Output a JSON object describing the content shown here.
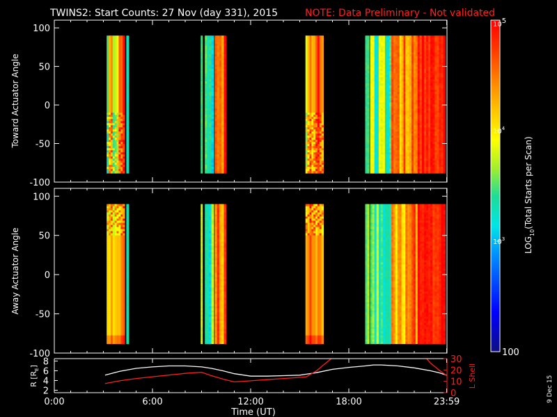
{
  "header": {
    "title": "TWINS2: Start Counts: 27 Nov (day 331), 2015",
    "note": "NOTE: Data Preliminary - Not validated"
  },
  "datestamp": "9 Dec 15",
  "colors": {
    "background": "#000000",
    "axes": "#ffffff",
    "note": "#ff2020",
    "lshell": "#ff2020",
    "radius": "#ffffff"
  },
  "colorbar": {
    "label": "LOG10(Total Starts per Scan)",
    "label_main": "LOG",
    "label_sub": "10",
    "label_rest": "(Total Starts per Scan)",
    "ticks": [
      {
        "value": 100,
        "label": "100",
        "kind": "plain"
      },
      {
        "value": 1000,
        "label_base": "10",
        "label_exp": "3",
        "kind": "power"
      },
      {
        "value": 10000,
        "label_base": "10",
        "label_exp": "4",
        "kind": "power"
      },
      {
        "value": 100000,
        "label_base": "10",
        "label_exp": "5",
        "kind": "power"
      }
    ],
    "range_log10": [
      2,
      5
    ]
  },
  "chart_data": [
    {
      "type": "heatmap",
      "ylabel": "Toward Actuator Angle",
      "ylim": [
        -100,
        110
      ],
      "yticks": [
        {
          "value": 100,
          "label": "100"
        },
        {
          "value": 50,
          "label": "50"
        },
        {
          "value": 0,
          "label": "0"
        },
        {
          "value": -50,
          "label": "-50"
        },
        {
          "value": -100,
          "label": "-100"
        }
      ],
      "xlim_hours": [
        0,
        24
      ],
      "angle_range": [
        -88,
        90
      ],
      "value_scale": "log10 counts",
      "intervals": [
        {
          "start": 3.2,
          "end": 4.3,
          "level": 4.3,
          "variation": 0.45,
          "texture": "striped"
        },
        {
          "start": 4.4,
          "end": 4.55,
          "level": 3.3,
          "variation": 0.15,
          "texture": "smooth"
        },
        {
          "start": 8.95,
          "end": 9.05,
          "level": 3.6,
          "variation": 0.2,
          "texture": "smooth"
        },
        {
          "start": 9.2,
          "end": 9.45,
          "level": 3.4,
          "variation": 0.2,
          "texture": "columns"
        },
        {
          "start": 9.45,
          "end": 9.75,
          "level": 3.3,
          "variation": 0.4,
          "texture": "columns"
        },
        {
          "start": 9.8,
          "end": 10.5,
          "level": 4.6,
          "variation": 0.45,
          "texture": "columns"
        },
        {
          "start": 15.35,
          "end": 16.45,
          "level": 4.4,
          "variation": 0.45,
          "texture": "striped"
        },
        {
          "start": 19.0,
          "end": 19.25,
          "level": 3.5,
          "variation": 0.2,
          "texture": "smooth"
        },
        {
          "start": 19.3,
          "end": 20.6,
          "level": 3.5,
          "variation": 0.45,
          "texture": "columns"
        },
        {
          "start": 20.6,
          "end": 22.2,
          "level": 4.4,
          "variation": 0.45,
          "texture": "columns"
        },
        {
          "start": 22.2,
          "end": 23.9,
          "level": 4.85,
          "variation": 0.2,
          "texture": "columns"
        }
      ]
    },
    {
      "type": "heatmap",
      "ylabel": "Away Actuator Angle",
      "ylim": [
        -100,
        110
      ],
      "yticks": [
        {
          "value": 100,
          "label": "100"
        },
        {
          "value": 50,
          "label": "50"
        },
        {
          "value": 0,
          "label": "0"
        },
        {
          "value": -50,
          "label": "-50"
        },
        {
          "value": -100,
          "label": "-100"
        }
      ],
      "xlim_hours": [
        0,
        24
      ],
      "angle_range": [
        -88,
        90
      ],
      "value_scale": "log10 counts",
      "intervals": [
        {
          "start": 3.2,
          "end": 4.3,
          "level": 4.4,
          "variation": 0.35,
          "texture": "striped-top"
        },
        {
          "start": 4.4,
          "end": 4.55,
          "level": 3.4,
          "variation": 0.15,
          "texture": "smooth"
        },
        {
          "start": 8.95,
          "end": 9.05,
          "level": 3.7,
          "variation": 0.2,
          "texture": "smooth"
        },
        {
          "start": 9.2,
          "end": 9.45,
          "level": 3.5,
          "variation": 0.2,
          "texture": "columns"
        },
        {
          "start": 9.45,
          "end": 9.75,
          "level": 3.4,
          "variation": 0.4,
          "texture": "columns"
        },
        {
          "start": 9.8,
          "end": 10.5,
          "level": 4.5,
          "variation": 0.4,
          "texture": "columns"
        },
        {
          "start": 15.35,
          "end": 16.45,
          "level": 4.5,
          "variation": 0.35,
          "texture": "striped-top"
        },
        {
          "start": 19.0,
          "end": 19.25,
          "level": 3.5,
          "variation": 0.2,
          "texture": "smooth"
        },
        {
          "start": 19.3,
          "end": 20.6,
          "level": 3.5,
          "variation": 0.45,
          "texture": "columns"
        },
        {
          "start": 20.6,
          "end": 22.2,
          "level": 4.4,
          "variation": 0.45,
          "texture": "columns"
        },
        {
          "start": 22.2,
          "end": 23.9,
          "level": 4.85,
          "variation": 0.2,
          "texture": "columns"
        }
      ]
    },
    {
      "type": "line",
      "xlabel": "Time (UT)",
      "xlim_hours": [
        0,
        24
      ],
      "xticks": [
        {
          "value": 0,
          "label": "0:00"
        },
        {
          "value": 6,
          "label": "6:00"
        },
        {
          "value": 12,
          "label": "12:00"
        },
        {
          "value": 18,
          "label": "18:00"
        },
        {
          "value": 23.983,
          "label": "23:59"
        }
      ],
      "left_axis": {
        "label_main": "R [R",
        "label_sub": "E",
        "label_end": "]",
        "ylim": [
          1.5,
          8.5
        ],
        "ticks": [
          {
            "value": 2,
            "label": "2"
          },
          {
            "value": 4,
            "label": "4"
          },
          {
            "value": 6,
            "label": "6"
          },
          {
            "value": 8,
            "label": "8"
          }
        ]
      },
      "right_axis": {
        "label": "L Shell",
        "ylim": [
          0,
          30
        ],
        "ticks": [
          {
            "value": 0,
            "label": "0"
          },
          {
            "value": 10,
            "label": "10"
          },
          {
            "value": 20,
            "label": "20"
          },
          {
            "value": 30,
            "label": "30"
          }
        ]
      },
      "series": [
        {
          "axis": "left",
          "x": [
            3.1,
            4.0,
            5.0,
            6.0,
            7.0,
            8.0,
            9.0,
            9.6,
            10.3,
            11.0,
            12.0,
            13.0,
            14.0,
            15.0,
            15.4,
            16.0,
            17.0,
            18.0,
            19.0,
            19.5,
            20.0,
            21.0,
            22.0,
            23.0,
            23.5,
            23.98
          ],
          "y": [
            5.1,
            5.9,
            6.5,
            6.8,
            7.0,
            7.0,
            6.8,
            6.5,
            6.0,
            5.4,
            4.9,
            4.9,
            5.0,
            5.1,
            5.3,
            5.6,
            6.3,
            6.7,
            7.0,
            7.2,
            7.2,
            7.0,
            6.6,
            6.0,
            5.6,
            5.1
          ]
        },
        {
          "axis": "right",
          "segments": [
            {
              "x": [
                3.1,
                4.0,
                5.0,
                6.0,
                7.0,
                8.0,
                9.0,
                9.6,
                10.3,
                11.0,
                12.0,
                13.0,
                14.0,
                15.0,
                15.4,
                16.0,
                16.5,
                17.0
              ],
              "y": [
                8.0,
                10.5,
                12.5,
                14.0,
                15.5,
                17.0,
                18.0,
                15.0,
                12.0,
                9.5,
                10.5,
                11.5,
                12.5,
                13.5,
                14.0,
                19.0,
                25.0,
                31.0
              ]
            },
            {
              "x": [
                22.7,
                23.0,
                23.5,
                23.98
              ],
              "y": [
                31.0,
                26.0,
                20.0,
                15.0
              ]
            }
          ]
        }
      ]
    }
  ]
}
